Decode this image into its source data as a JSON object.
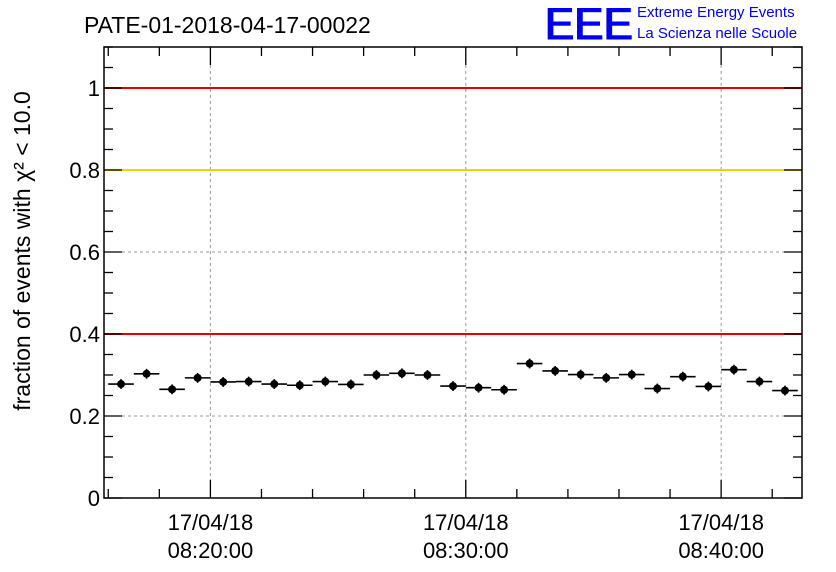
{
  "logo": {
    "mark": "EEE",
    "line1": "Extreme Energy Events",
    "line2": "La Scienza nelle Scuole",
    "color": "#0000ee"
  },
  "chart_data": {
    "type": "scatter",
    "title": "PATE-01-2018-04-17-00022",
    "ylabel": "fraction of events with χ² < 10.0",
    "xlabel": "",
    "x_time_range": [
      "2018-04-17 08:15:50",
      "2018-04-17 08:43:10"
    ],
    "ylim": [
      0,
      1.1
    ],
    "yticks": [
      0,
      0.2,
      0.4,
      0.6,
      0.8,
      1
    ],
    "ytick_labels": [
      "0",
      "0.2",
      "0.4",
      "0.6",
      "0.8",
      "1"
    ],
    "xticks": [
      {
        "time": "2018-04-17 08:20:00",
        "date": "17/04/18",
        "clock": "08:20:00"
      },
      {
        "time": "2018-04-17 08:30:00",
        "date": "17/04/18",
        "clock": "08:30:00"
      },
      {
        "time": "2018-04-17 08:40:00",
        "date": "17/04/18",
        "clock": "08:40:00"
      }
    ],
    "minor_tick_interval_minutes": 2,
    "grid": true,
    "bin_width_minutes": 1,
    "thresholds": [
      {
        "value": 1.0,
        "color": "#e60000"
      },
      {
        "value": 0.8,
        "color": "#ffcc00"
      },
      {
        "value": 0.4,
        "color": "#e60000"
      }
    ],
    "points": [
      {
        "x": "2018-04-17 08:16:30",
        "y": 0.278
      },
      {
        "x": "2018-04-17 08:17:30",
        "y": 0.303
      },
      {
        "x": "2018-04-17 08:18:30",
        "y": 0.265
      },
      {
        "x": "2018-04-17 08:19:30",
        "y": 0.293
      },
      {
        "x": "2018-04-17 08:20:30",
        "y": 0.283
      },
      {
        "x": "2018-04-17 08:21:30",
        "y": 0.284
      },
      {
        "x": "2018-04-17 08:22:30",
        "y": 0.278
      },
      {
        "x": "2018-04-17 08:23:30",
        "y": 0.275
      },
      {
        "x": "2018-04-17 08:24:30",
        "y": 0.284
      },
      {
        "x": "2018-04-17 08:25:30",
        "y": 0.277
      },
      {
        "x": "2018-04-17 08:26:30",
        "y": 0.3
      },
      {
        "x": "2018-04-17 08:27:30",
        "y": 0.304
      },
      {
        "x": "2018-04-17 08:28:30",
        "y": 0.3
      },
      {
        "x": "2018-04-17 08:29:30",
        "y": 0.273
      },
      {
        "x": "2018-04-17 08:30:30",
        "y": 0.269
      },
      {
        "x": "2018-04-17 08:31:30",
        "y": 0.264
      },
      {
        "x": "2018-04-17 08:32:30",
        "y": 0.328
      },
      {
        "x": "2018-04-17 08:33:30",
        "y": 0.31
      },
      {
        "x": "2018-04-17 08:34:30",
        "y": 0.301
      },
      {
        "x": "2018-04-17 08:35:30",
        "y": 0.293
      },
      {
        "x": "2018-04-17 08:36:30",
        "y": 0.301
      },
      {
        "x": "2018-04-17 08:37:30",
        "y": 0.267
      },
      {
        "x": "2018-04-17 08:38:30",
        "y": 0.296
      },
      {
        "x": "2018-04-17 08:39:30",
        "y": 0.272
      },
      {
        "x": "2018-04-17 08:40:30",
        "y": 0.313
      },
      {
        "x": "2018-04-17 08:41:30",
        "y": 0.284
      },
      {
        "x": "2018-04-17 08:42:30",
        "y": 0.262
      }
    ],
    "y_error": 0.012,
    "marker_color": "#000000"
  }
}
